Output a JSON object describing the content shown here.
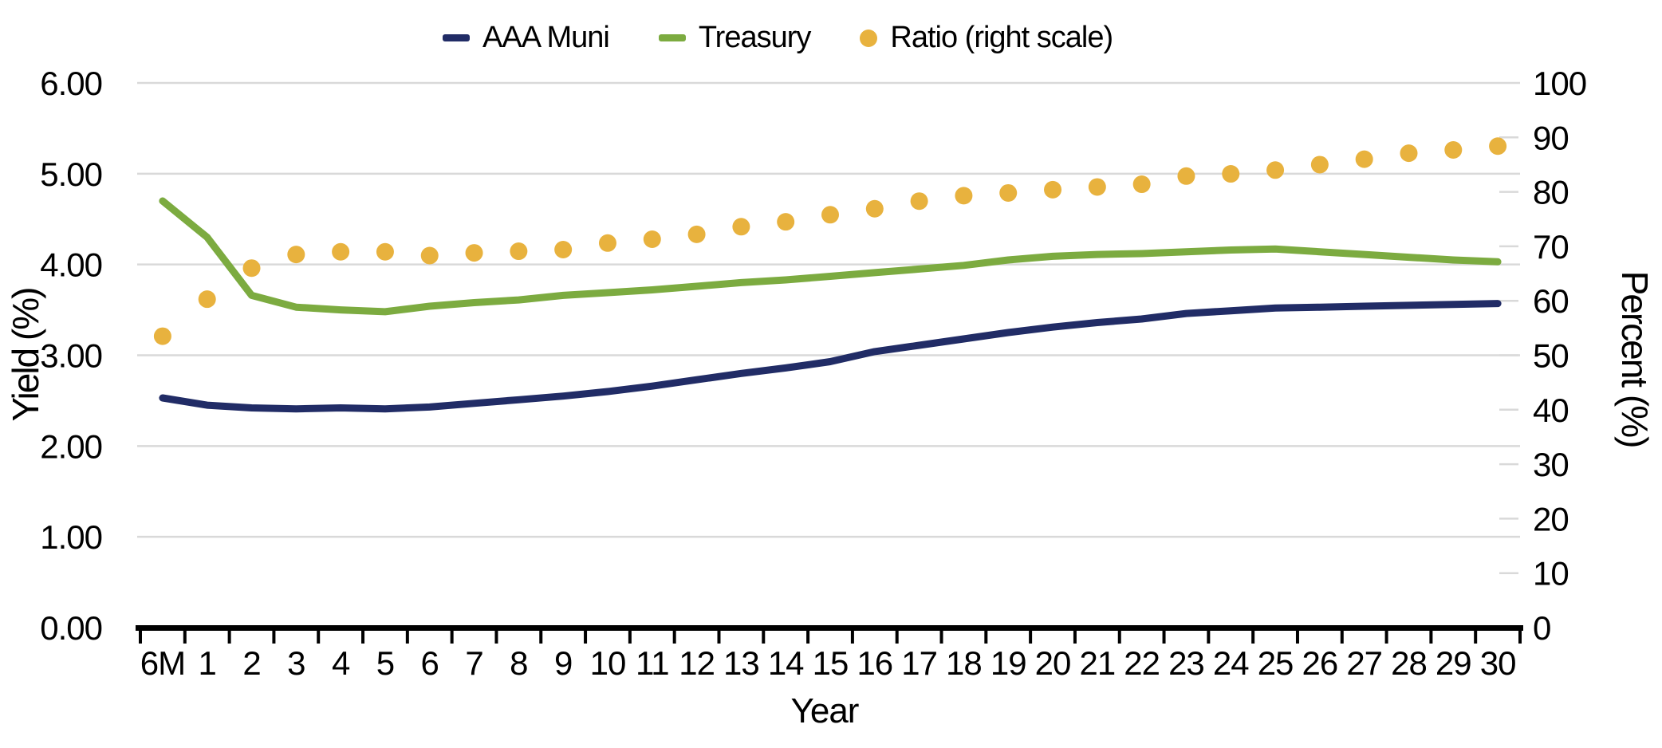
{
  "chart_data": {
    "type": "line",
    "title": "",
    "categories": [
      "6M",
      "1",
      "2",
      "3",
      "4",
      "5",
      "6",
      "7",
      "8",
      "9",
      "10",
      "11",
      "12",
      "13",
      "14",
      "15",
      "16",
      "17",
      "18",
      "19",
      "20",
      "21",
      "22",
      "23",
      "24",
      "25",
      "26",
      "27",
      "28",
      "29",
      "30"
    ],
    "series": [
      {
        "name": "AAA Muni",
        "style": "line",
        "axis": "left",
        "color": "#212c66",
        "values": [
          2.53,
          2.45,
          2.42,
          2.41,
          2.42,
          2.41,
          2.43,
          2.47,
          2.51,
          2.55,
          2.6,
          2.66,
          2.73,
          2.8,
          2.86,
          2.93,
          3.04,
          3.11,
          3.18,
          3.25,
          3.31,
          3.36,
          3.4,
          3.46,
          3.49,
          3.52,
          3.53,
          3.54,
          3.55,
          3.56,
          3.57
        ]
      },
      {
        "name": "Treasury",
        "style": "line",
        "axis": "left",
        "color": "#7cab40",
        "values": [
          4.7,
          4.3,
          3.66,
          3.53,
          3.5,
          3.48,
          3.54,
          3.58,
          3.61,
          3.66,
          3.69,
          3.72,
          3.76,
          3.8,
          3.83,
          3.87,
          3.91,
          3.95,
          3.99,
          4.05,
          4.09,
          4.11,
          4.12,
          4.14,
          4.16,
          4.17,
          4.14,
          4.11,
          4.08,
          4.05,
          4.03
        ]
      },
      {
        "name": "Ratio (right scale)",
        "style": "scatter",
        "axis": "right",
        "color": "#e8b23e",
        "values": [
          53.5,
          60.3,
          66.0,
          68.5,
          69.0,
          69.0,
          68.3,
          68.8,
          69.1,
          69.4,
          70.6,
          71.3,
          72.2,
          73.6,
          74.5,
          75.8,
          76.9,
          78.3,
          79.3,
          79.8,
          80.4,
          80.9,
          81.4,
          82.9,
          83.3,
          84.0,
          85.0,
          86.0,
          87.1,
          87.7,
          88.4
        ]
      }
    ],
    "x_axis": {
      "label": "Year"
    },
    "left_axis": {
      "label": "Yield (%)",
      "min": 0,
      "max": 6,
      "ticks": [
        "0.00",
        "1.00",
        "2.00",
        "3.00",
        "4.00",
        "5.00",
        "6.00"
      ]
    },
    "right_axis": {
      "label": "Percent (%)",
      "min": 0,
      "max": 100,
      "ticks": [
        "0",
        "10",
        "20",
        "30",
        "40",
        "50",
        "60",
        "70",
        "80",
        "90",
        "100"
      ]
    },
    "grid": "horizontal",
    "legend_position": "top"
  },
  "colors": {
    "grid": "#d9d9d9",
    "axis": "#000000",
    "background": "#ffffff"
  }
}
